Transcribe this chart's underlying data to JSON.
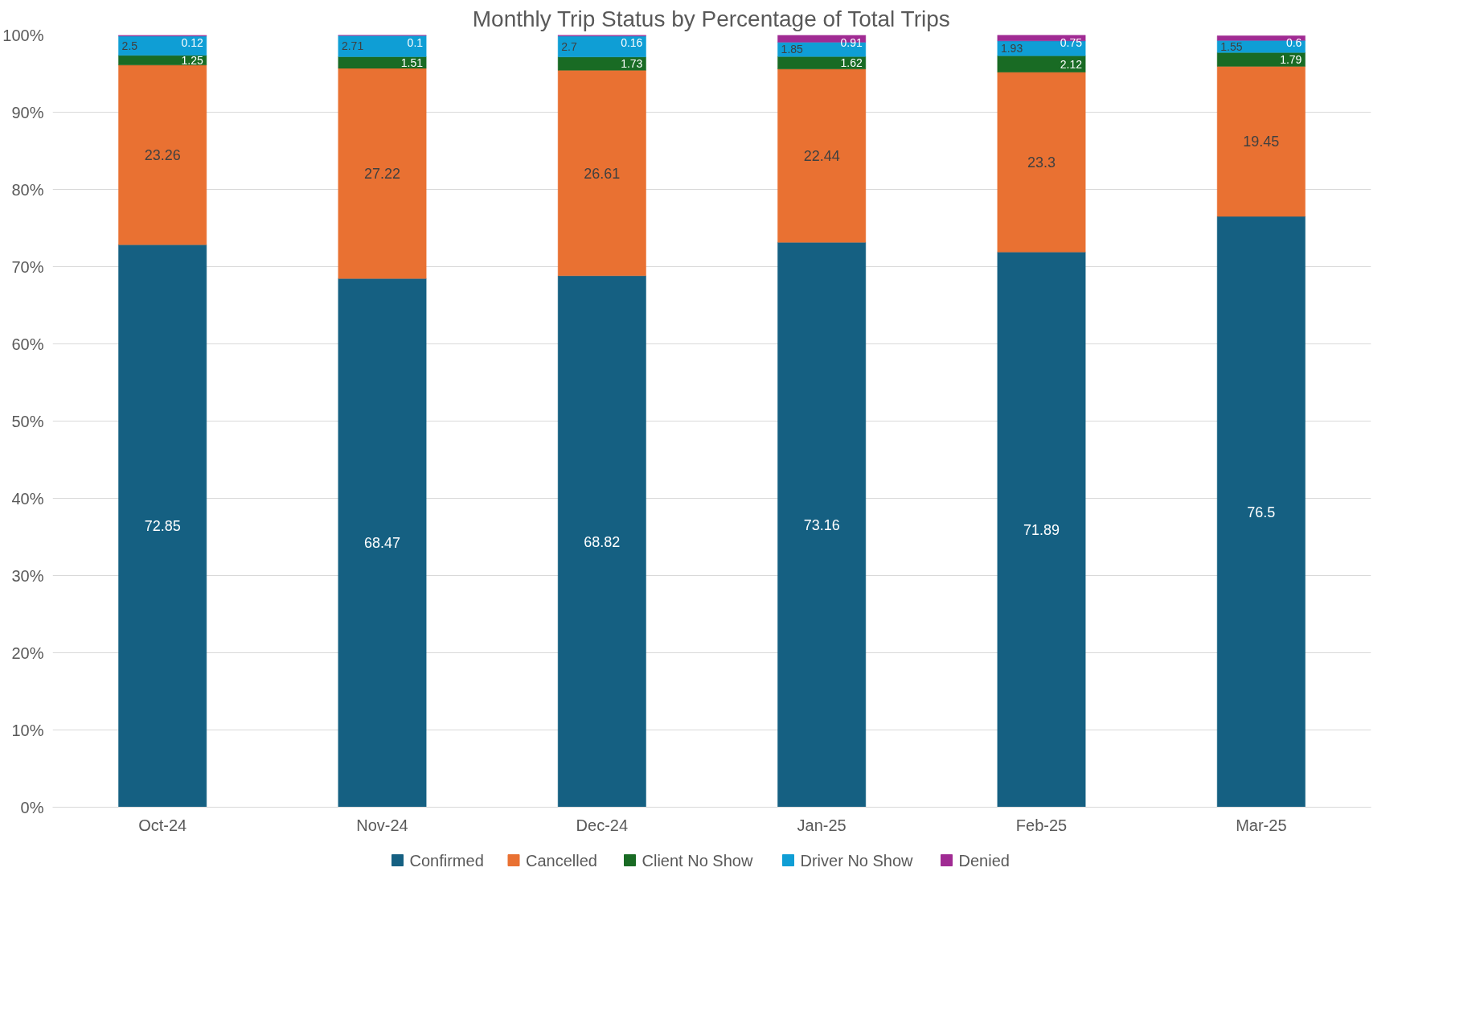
{
  "chart_data": {
    "type": "bar",
    "stacked": true,
    "title": "Monthly Trip Status by Percentage of Total Trips",
    "categories": [
      "Oct-24",
      "Nov-24",
      "Dec-24",
      "Jan-25",
      "Feb-25",
      "Mar-25"
    ],
    "series": [
      {
        "name": "Confirmed",
        "color": "#156082",
        "values": [
          72.85,
          68.47,
          68.82,
          73.16,
          71.89,
          76.5
        ]
      },
      {
        "name": "Cancelled",
        "color": "#e97132",
        "values": [
          23.26,
          27.22,
          26.61,
          22.44,
          23.3,
          19.45
        ]
      },
      {
        "name": "Client No Show",
        "color": "#196b24",
        "values": [
          1.25,
          1.51,
          1.73,
          1.62,
          2.12,
          1.79
        ]
      },
      {
        "name": "Driver No Show",
        "color": "#0f9ed5",
        "values": [
          2.5,
          2.71,
          2.7,
          1.85,
          1.93,
          1.55
        ]
      },
      {
        "name": "Denied",
        "color": "#a02b93",
        "values": [
          0.12,
          0.1,
          0.16,
          0.91,
          0.75,
          0.6
        ]
      }
    ],
    "ylim": [
      0,
      100
    ],
    "yticks": [
      {
        "value": 0,
        "label": "0%"
      },
      {
        "value": 10,
        "label": "10%"
      },
      {
        "value": 20,
        "label": "20%"
      },
      {
        "value": 30,
        "label": "30%"
      },
      {
        "value": 40,
        "label": "40%"
      },
      {
        "value": 50,
        "label": "50%"
      },
      {
        "value": 60,
        "label": "60%"
      },
      {
        "value": 70,
        "label": "70%"
      },
      {
        "value": 80,
        "label": "80%"
      },
      {
        "value": 90,
        "label": "90%"
      },
      {
        "value": 100,
        "label": "100%"
      }
    ],
    "grid": "y",
    "legend": "bottom",
    "data_labels": true
  }
}
